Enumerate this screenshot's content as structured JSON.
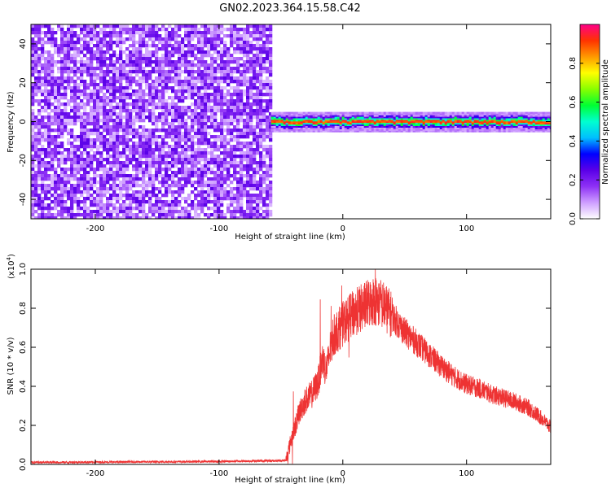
{
  "title": "GN02.2023.364.15.58.C42",
  "chart_data": [
    {
      "type": "heatmap",
      "xlabel": "Height of straight line (km)",
      "ylabel": "Frequency (Hz)",
      "xlim": [
        -252,
        168
      ],
      "ylim": [
        -50,
        50
      ],
      "xticks": [
        -200,
        -100,
        0,
        100
      ],
      "yticks": [
        -40,
        -20,
        0,
        20,
        40
      ],
      "regions": [
        {
          "x_range": [
            -252,
            -58
          ],
          "y_range": [
            -50,
            50
          ],
          "amplitude_range": [
            0.05,
            0.25
          ]
        },
        {
          "x_range": [
            -58,
            168
          ],
          "y_center": 0,
          "y_halfwidth": 3,
          "amplitude_range": [
            0.3,
            0.95
          ]
        }
      ],
      "colorbar": {
        "label": "Normalized spectral amplitude",
        "range": [
          0.0,
          1.0
        ],
        "ticks": [
          "0.0",
          "0.2",
          "0.4",
          "0.6",
          "0.8"
        ],
        "colors": [
          "#ffffff",
          "#ce9eff",
          "#8e31f5",
          "#5a00e8",
          "#0000ff",
          "#00bfff",
          "#00ffd0",
          "#00ff33",
          "#88ff00",
          "#ffff00",
          "#ff9900",
          "#ff3300",
          "#ff0088"
        ]
      },
      "grid": false
    },
    {
      "type": "line",
      "xlabel": "Height of straight line (km)",
      "ylabel": "SNR (10 * v/v)",
      "y_multiplier_label": "(x10",
      "y_multiplier_exp": "4",
      "y_multiplier_close": ")",
      "xlim": [
        -252,
        168
      ],
      "ylim": [
        0.0,
        1.0
      ],
      "xticks": [
        -200,
        -100,
        0,
        100
      ],
      "yticks": [
        "0.0",
        "0.2",
        "0.4",
        "0.6",
        "0.8",
        "1.0"
      ],
      "color": "#ee3333",
      "series": [
        {
          "x": [
            -252,
            -100,
            -46,
            -42,
            -35,
            -30,
            -25,
            -20,
            -16,
            -14,
            -12,
            -10,
            -8,
            -5,
            0,
            5,
            10,
            15,
            20,
            25,
            30,
            35,
            40,
            50,
            60,
            70,
            80,
            90,
            100,
            110,
            120,
            130,
            140,
            150,
            160,
            168
          ],
          "y": [
            0.01,
            0.015,
            0.02,
            0.12,
            0.27,
            0.33,
            0.36,
            0.42,
            0.55,
            0.48,
            0.52,
            0.6,
            0.65,
            0.68,
            0.72,
            0.75,
            0.78,
            0.8,
            0.82,
            0.84,
            0.83,
            0.8,
            0.76,
            0.68,
            0.62,
            0.56,
            0.5,
            0.45,
            0.41,
            0.39,
            0.36,
            0.34,
            0.32,
            0.29,
            0.24,
            0.19
          ]
        }
      ],
      "grid": false
    }
  ]
}
